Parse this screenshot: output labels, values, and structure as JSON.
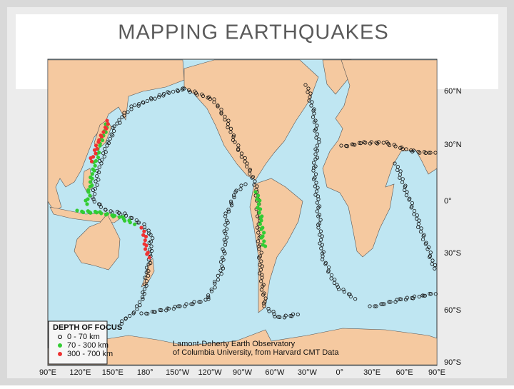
{
  "title": "MAPPING EARTHQUAKES",
  "map": {
    "lat_labels": [
      "60°N",
      "30°N",
      "0°",
      "30°S",
      "60°S",
      "90°S"
    ],
    "lon_labels": [
      "90°E",
      "120°E",
      "150°E",
      "180°",
      "150°W",
      "120°W",
      "90°W",
      "60°W",
      "30°W",
      "0°",
      "30°E",
      "60°E",
      "90°E"
    ],
    "legend": {
      "title": "DEPTH OF FOCUS",
      "items": [
        "0 - 70 km",
        "70 - 300 km",
        "300 - 700 km"
      ]
    },
    "credit": [
      "Lamont-Doherty Earth Observatory",
      "of Columbia University, from Harvard CMT Data"
    ]
  }
}
